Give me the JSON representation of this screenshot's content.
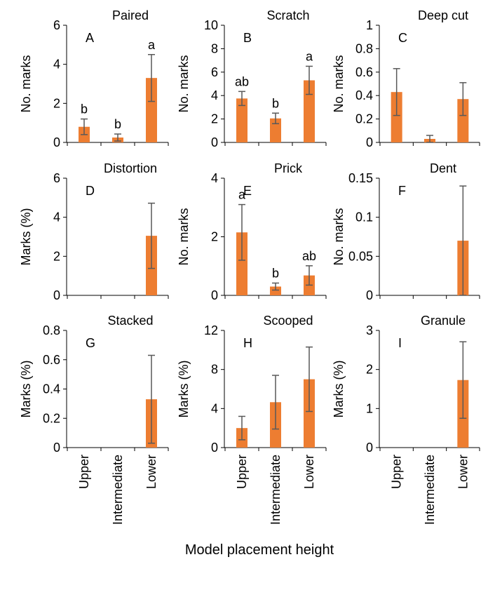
{
  "chart_data": [
    {
      "type": "bar",
      "title": "Paired",
      "letter": "A",
      "ylabel": "No. marks",
      "categories": [
        "Upper",
        "Intermediate",
        "Lower"
      ],
      "values": [
        0.8,
        0.25,
        3.3
      ],
      "errors": [
        0.4,
        0.18,
        1.2
      ],
      "significance": [
        "b",
        "b",
        "a"
      ],
      "ylim": [
        0,
        6
      ],
      "yticks": [
        "0",
        "2",
        "4",
        "6"
      ],
      "ytick_values": [
        0,
        2,
        4,
        6
      ]
    },
    {
      "type": "bar",
      "title": "Scratch",
      "letter": "B",
      "ylabel": "No. marks",
      "categories": [
        "Upper",
        "Intermediate",
        "Lower"
      ],
      "values": [
        3.75,
        2.05,
        5.3
      ],
      "errors": [
        0.6,
        0.45,
        1.2
      ],
      "significance": [
        "ab",
        "b",
        "a"
      ],
      "ylim": [
        0,
        10
      ],
      "yticks": [
        "0",
        "2",
        "4",
        "6",
        "8",
        "10"
      ],
      "ytick_values": [
        0,
        2,
        4,
        6,
        8,
        10
      ]
    },
    {
      "type": "bar",
      "title": "Deep cut",
      "letter": "C",
      "ylabel": "No. marks",
      "categories": [
        "Upper",
        "Intermediate",
        "Lower"
      ],
      "values": [
        0.43,
        0.03,
        0.37
      ],
      "errors": [
        0.2,
        0.03,
        0.14
      ],
      "significance": [
        "",
        "",
        ""
      ],
      "ylim": [
        0,
        1
      ],
      "yticks": [
        "0",
        "0.2",
        "0.4",
        "0.6",
        "0.8",
        "1"
      ],
      "ytick_values": [
        0,
        0.2,
        0.4,
        0.6,
        0.8,
        1
      ]
    },
    {
      "type": "bar",
      "title": "Distortion",
      "letter": "D",
      "ylabel": "Marks (%)",
      "categories": [
        "Upper",
        "Intermediate",
        "Lower"
      ],
      "values": [
        0,
        0,
        3.05
      ],
      "errors": [
        0,
        0,
        1.67
      ],
      "significance": [
        "",
        "",
        ""
      ],
      "ylim": [
        0,
        6
      ],
      "yticks": [
        "0",
        "2",
        "4",
        "6"
      ],
      "ytick_values": [
        0,
        2,
        4,
        6
      ]
    },
    {
      "type": "bar",
      "title": "Prick",
      "letter": "E",
      "ylabel": "No. marks",
      "categories": [
        "Upper",
        "Intermediate",
        "Lower"
      ],
      "values": [
        2.15,
        0.3,
        0.68
      ],
      "errors": [
        0.95,
        0.12,
        0.33
      ],
      "significance": [
        "a",
        "b",
        "ab"
      ],
      "ylim": [
        0,
        4
      ],
      "yticks": [
        "0",
        "2",
        "4"
      ],
      "ytick_values": [
        0,
        2,
        4
      ]
    },
    {
      "type": "bar",
      "title": "Dent",
      "letter": "F",
      "ylabel": "No. marks",
      "categories": [
        "Upper",
        "Intermediate",
        "Lower"
      ],
      "values": [
        0,
        0,
        0.07
      ],
      "errors": [
        0,
        0,
        0.07
      ],
      "significance": [
        "",
        "",
        ""
      ],
      "ylim": [
        0,
        0.15
      ],
      "yticks": [
        "0",
        "0.05",
        "0.1",
        "0.15"
      ],
      "ytick_values": [
        0,
        0.05,
        0.1,
        0.15
      ]
    },
    {
      "type": "bar",
      "title": "Stacked",
      "letter": "G",
      "ylabel": "Marks (%)",
      "categories": [
        "Upper",
        "Intermediate",
        "Lower"
      ],
      "values": [
        0,
        0,
        0.33
      ],
      "errors": [
        0,
        0,
        0.3
      ],
      "significance": [
        "",
        "",
        ""
      ],
      "ylim": [
        0,
        0.8
      ],
      "yticks": [
        "0",
        "0.2",
        "0.4",
        "0.6",
        "0.8"
      ],
      "ytick_values": [
        0,
        0.2,
        0.4,
        0.6,
        0.8
      ]
    },
    {
      "type": "bar",
      "title": "Scooped",
      "letter": "H",
      "ylabel": "Marks (%)",
      "categories": [
        "Upper",
        "Intermediate",
        "Lower"
      ],
      "values": [
        2.0,
        4.65,
        7.0
      ],
      "errors": [
        1.2,
        2.75,
        3.3
      ],
      "significance": [
        "",
        "",
        ""
      ],
      "ylim": [
        0,
        12
      ],
      "yticks": [
        "0",
        "4",
        "8",
        "12"
      ],
      "ytick_values": [
        0,
        4,
        8,
        12
      ]
    },
    {
      "type": "bar",
      "title": "Granule",
      "letter": "I",
      "ylabel": "Marks (%)",
      "categories": [
        "Upper",
        "Intermediate",
        "Lower"
      ],
      "values": [
        0,
        0,
        1.73
      ],
      "errors": [
        0,
        0,
        0.98
      ],
      "significance": [
        "",
        "",
        ""
      ],
      "ylim": [
        0,
        3
      ],
      "yticks": [
        "0",
        "1",
        "2",
        "3"
      ],
      "ytick_values": [
        0,
        1,
        2,
        3
      ]
    }
  ],
  "x_categories": [
    "Upper",
    "Intermediate",
    "Lower"
  ],
  "xlabel": "Model placement height",
  "colors": {
    "bar": "#ED7D31",
    "error": "#595959",
    "axis": "#000000"
  }
}
